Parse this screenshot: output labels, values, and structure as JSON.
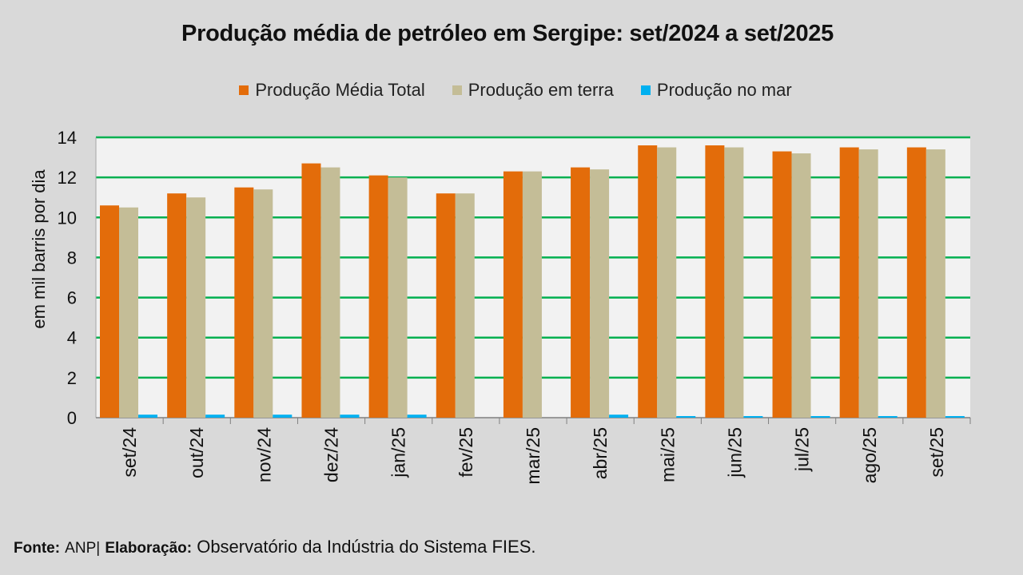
{
  "chart_data": {
    "type": "bar",
    "title": "Produção média de petróleo em Sergipe: set/2024 a set/2025",
    "ylabel": "em mil barris por dia",
    "xlabel": "",
    "ylim": [
      0,
      14
    ],
    "yticks": [
      "0",
      "2",
      "4",
      "6",
      "8",
      "10",
      "12",
      "14"
    ],
    "grid": true,
    "legend_position": "top",
    "categories": [
      "set/24",
      "out/24",
      "nov/24",
      "dez/24",
      "jan/25",
      "fev/25",
      "mar/25",
      "abr/25",
      "mai/25",
      "jun/25",
      "jul/25",
      "ago/25",
      "set/25"
    ],
    "series": [
      {
        "name": "Produção Média Total",
        "color": "#e36c0a",
        "values": [
          10.6,
          11.2,
          11.5,
          12.7,
          12.1,
          11.2,
          12.3,
          12.5,
          13.6,
          13.6,
          13.3,
          13.5,
          13.5
        ]
      },
      {
        "name": "Produção em terra",
        "color": "#c4bd97",
        "values": [
          10.5,
          11.0,
          11.4,
          12.5,
          12.0,
          11.2,
          12.3,
          12.4,
          13.5,
          13.5,
          13.2,
          13.4,
          13.4
        ]
      },
      {
        "name": "Produção no mar",
        "color": "#00b0f0",
        "values": [
          0.15,
          0.15,
          0.15,
          0.15,
          0.15,
          0.0,
          0.0,
          0.15,
          0.08,
          0.08,
          0.08,
          0.08,
          0.08
        ]
      }
    ]
  },
  "colors": {
    "background": "#d9d9d9",
    "plot_background": "#f2f2f2",
    "gridline": "#00b050"
  },
  "footer": {
    "source_label": "Fonte:",
    "source_value": "ANP|",
    "credit_label": "Elaboração:",
    "credit_value": "Observatório da Indústria do Sistema FIES."
  }
}
